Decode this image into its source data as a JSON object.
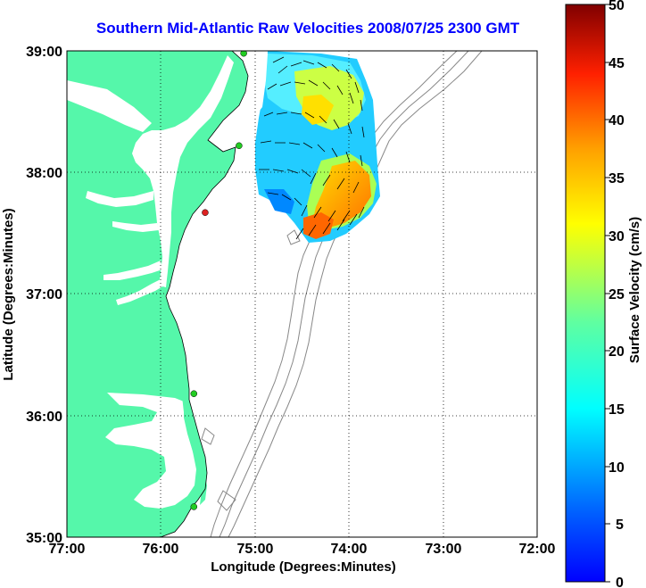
{
  "title": "Southern Mid-Atlantic Raw Velocities 2008/07/25 2300 GMT",
  "xlabel": "Longitude (Degrees:Minutes)",
  "ylabel": "Latitude (Degrees:Minutes)",
  "colorbar_label": "Surface Velocity (cm/s)",
  "x_ticks": [
    "77:00",
    "76:00",
    "75:00",
    "74:00",
    "73:00",
    "72:00"
  ],
  "y_ticks": [
    "39:00",
    "38:00",
    "37:00",
    "36:00",
    "35:00"
  ],
  "colorbar_ticks": [
    "50",
    "45",
    "40",
    "35",
    "30",
    "25",
    "20",
    "15",
    "10",
    "5",
    "0"
  ],
  "colors": {
    "land": "#55f7aa",
    "title": "#0000ff",
    "bathymetry": "#888888",
    "station_active": "#22cc22",
    "station_inactive": "#dd2222"
  },
  "map": {
    "lon_range": [
      -77.0,
      -72.0
    ],
    "lat_range": [
      35.0,
      39.0
    ],
    "grid": "dotted",
    "stations": [
      {
        "lon": -75.12,
        "lat": 38.98,
        "status": "active"
      },
      {
        "lon": -75.17,
        "lat": 38.22,
        "status": "active"
      },
      {
        "lon": -75.53,
        "lat": 37.67,
        "status": "inactive"
      },
      {
        "lon": -75.65,
        "lat": 36.18,
        "status": "active"
      },
      {
        "lon": -75.65,
        "lat": 35.25,
        "status": "active"
      }
    ]
  },
  "colorbar": {
    "min": 0,
    "max": 50,
    "colormap": "jet"
  }
}
